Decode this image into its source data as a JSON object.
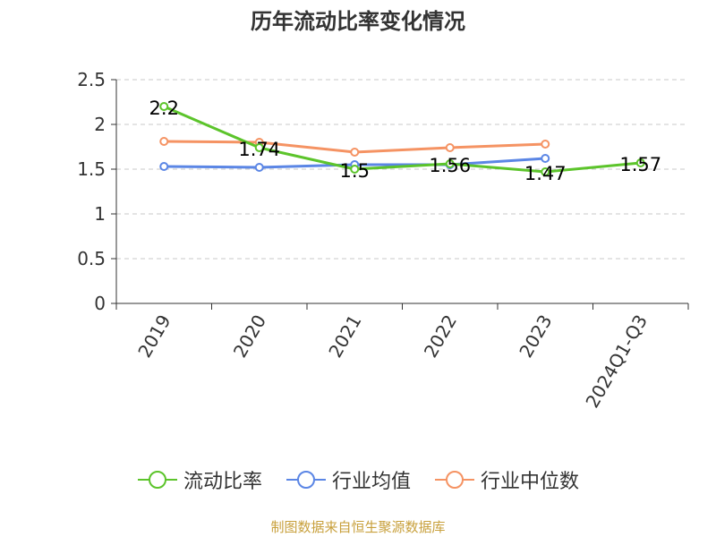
{
  "title": "历年流动比率变化情况",
  "source": "制图数据来自恒生聚源数据库",
  "legend_labels": [
    "流动比率",
    "行业均值",
    "行业中位数"
  ],
  "chart_data": {
    "type": "line",
    "title": "历年流动比率变化情况",
    "categories": [
      "2019",
      "2020",
      "2021",
      "2022",
      "2023",
      "2024Q1-Q3"
    ],
    "ylim": [
      0,
      2.5
    ],
    "yticks": [
      "0",
      "0.5",
      "1",
      "1.5",
      "2",
      "2.5"
    ],
    "grid": true,
    "legend_position": "bottom",
    "series": [
      {
        "name": "流动比率",
        "color": "#5cc42b",
        "values": [
          2.2,
          1.74,
          1.5,
          1.56,
          1.47,
          1.57
        ],
        "labels": [
          "2.2",
          "1.74",
          "1.5",
          "1.56",
          "1.47",
          "1.57"
        ]
      },
      {
        "name": "行业均值",
        "color": "#5b86e5",
        "values": [
          1.53,
          1.52,
          1.55,
          1.55,
          1.62,
          null
        ]
      },
      {
        "name": "行业中位数",
        "color": "#f59363",
        "values": [
          1.81,
          1.8,
          1.69,
          1.74,
          1.78,
          null
        ]
      }
    ]
  }
}
